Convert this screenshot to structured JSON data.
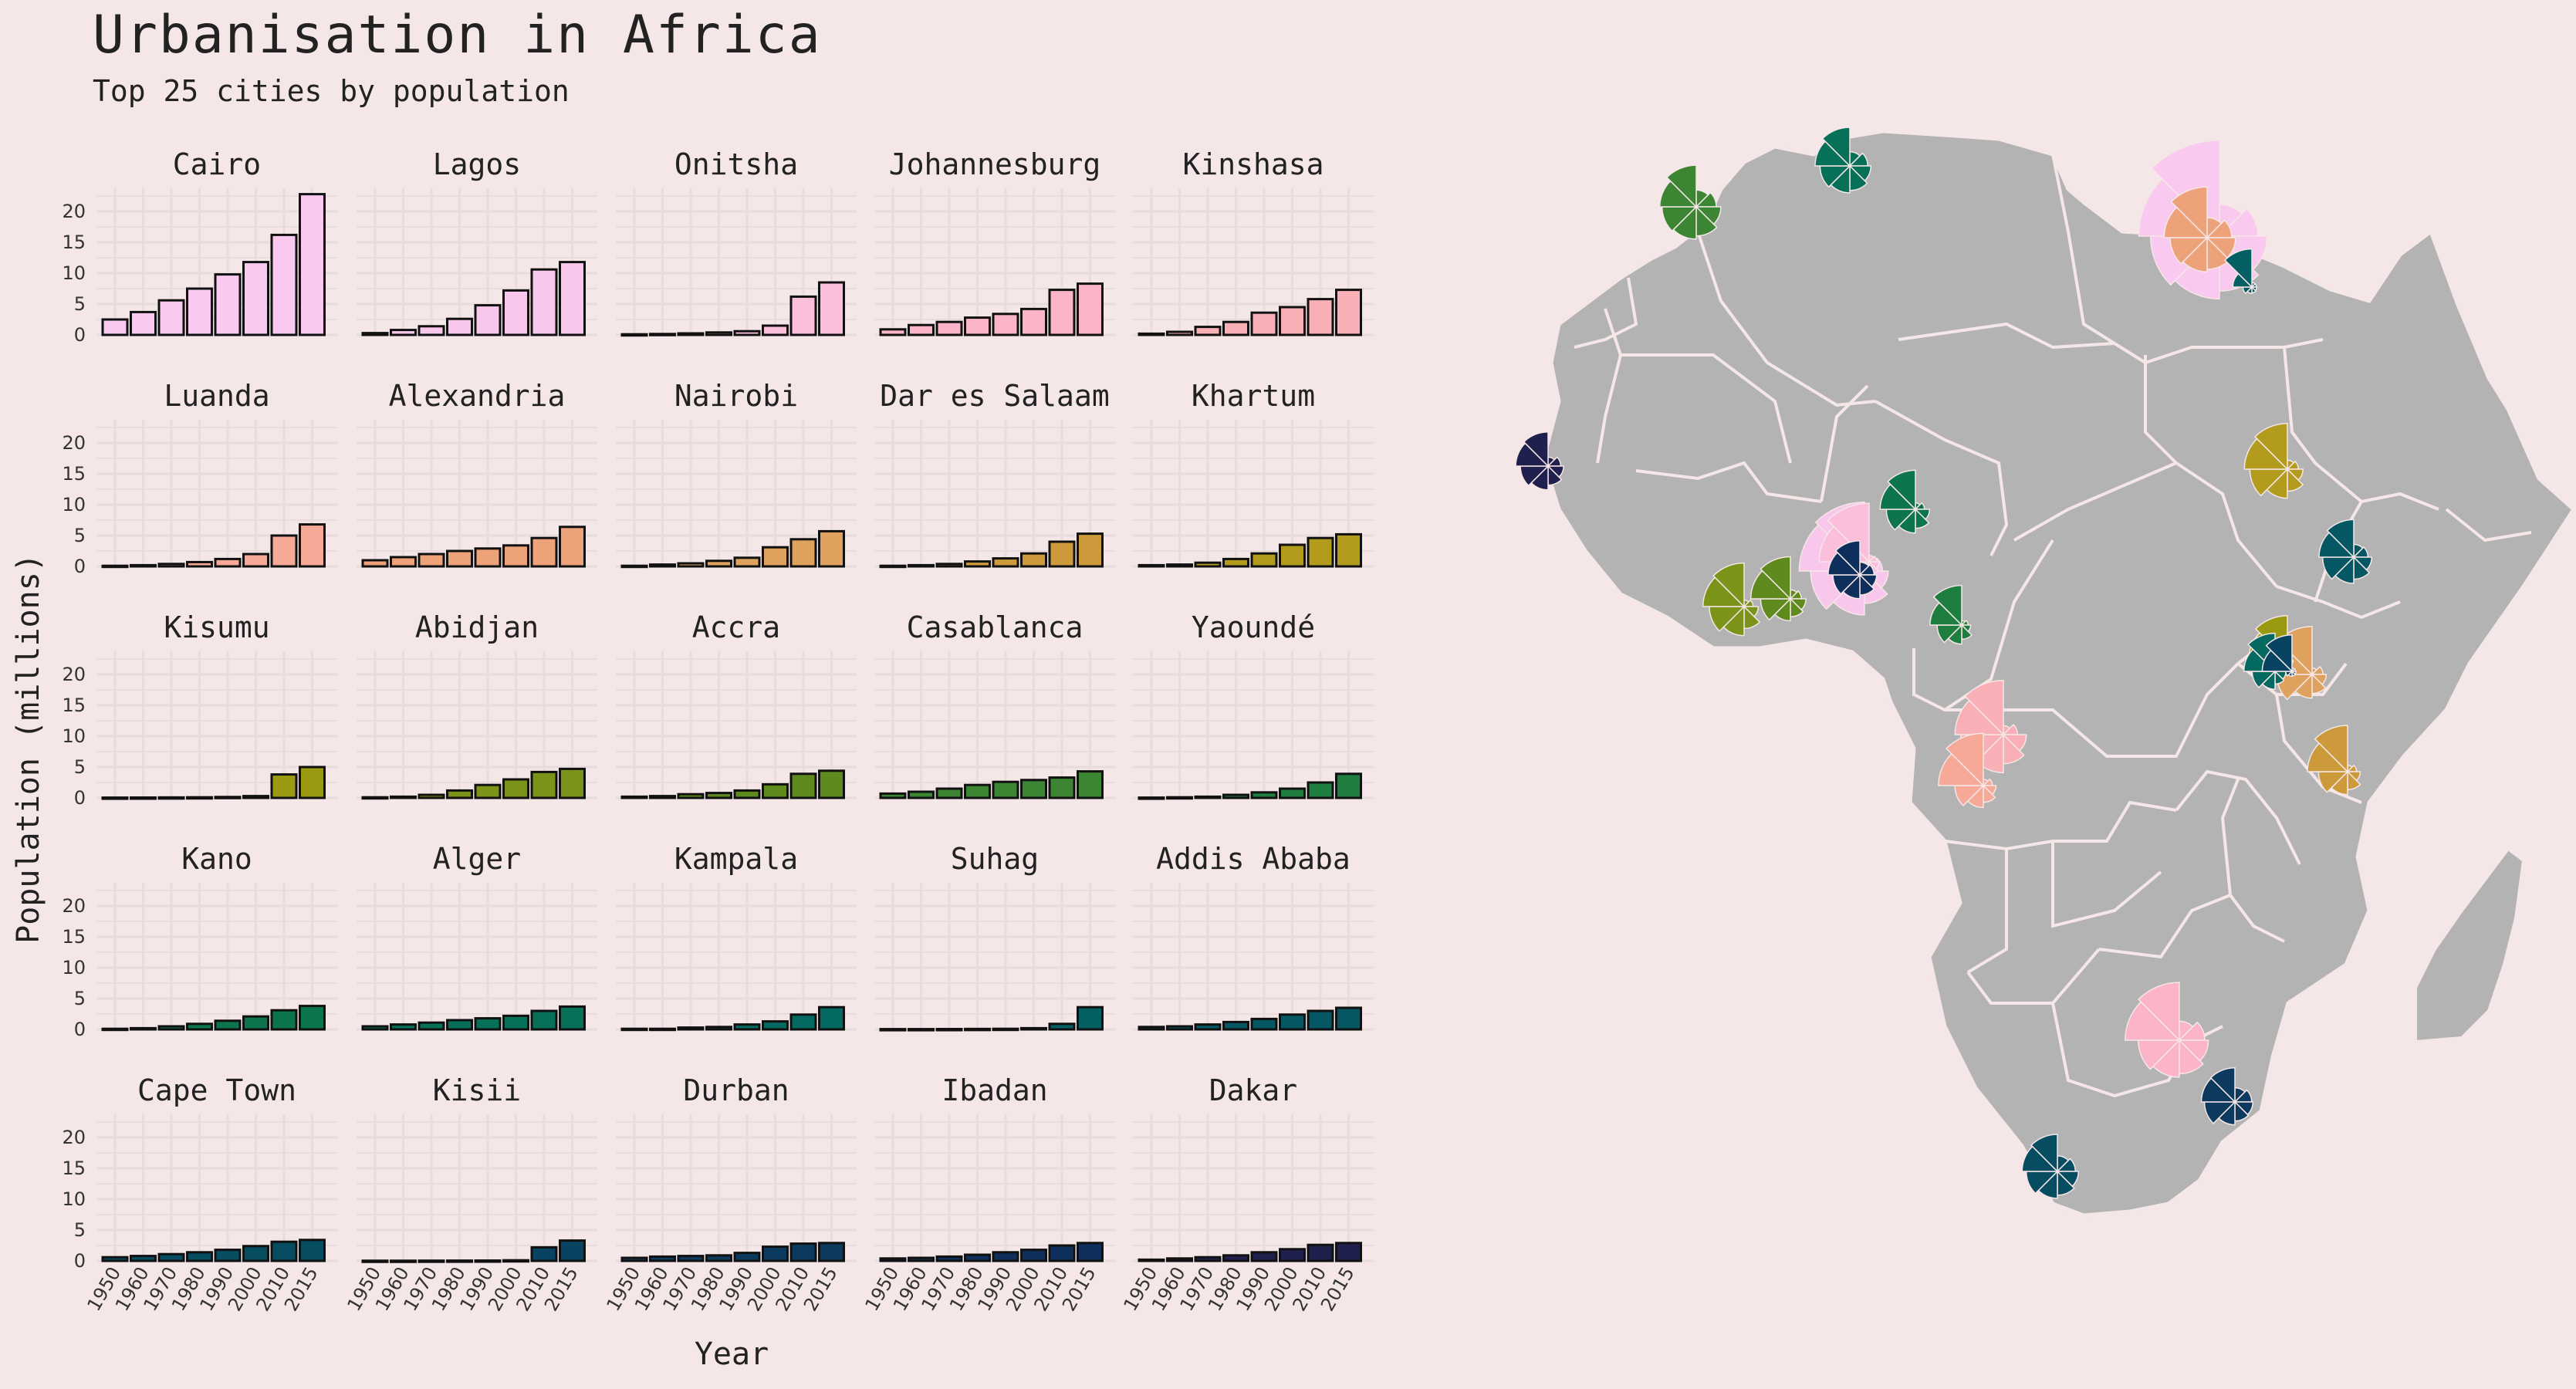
{
  "title": "Urbanisation in Africa",
  "subtitle": "Top 25 cities by population",
  "colors": {
    "background": "#f5e6e7",
    "grid": "#e8dcdc",
    "land": "#b3b3b3",
    "border": "#f5e6e7",
    "bar_outline": "#111111"
  },
  "chart_data": [
    {
      "type": "bar",
      "layout": "facet grid 5x5",
      "title": "Urbanisation in Africa",
      "subtitle": "Top 25 cities by population",
      "xlabel": "Year",
      "ylabel": "Population (millions)",
      "ylim": [
        0,
        23
      ],
      "yticks": [
        0,
        5,
        10,
        15,
        20
      ],
      "categories": [
        "1950",
        "1960",
        "1970",
        "1980",
        "1990",
        "2000",
        "2010",
        "2015"
      ],
      "grid": true,
      "series": [
        {
          "name": "Cairo",
          "color": "#f9c9ef",
          "values": [
            2.5,
            3.7,
            5.6,
            7.5,
            9.8,
            11.8,
            16.2,
            22.8
          ]
        },
        {
          "name": "Lagos",
          "color": "#fac7ec",
          "values": [
            0.3,
            0.8,
            1.4,
            2.6,
            4.8,
            7.2,
            10.6,
            11.8
          ]
        },
        {
          "name": "Onitsha",
          "color": "#fbbfdc",
          "values": [
            0.1,
            0.15,
            0.25,
            0.4,
            0.6,
            1.5,
            6.2,
            8.5
          ]
        },
        {
          "name": "Johannesburg",
          "color": "#fbb4c8",
          "values": [
            0.9,
            1.6,
            2.1,
            2.8,
            3.4,
            4.2,
            7.3,
            8.3
          ]
        },
        {
          "name": "Kinshasa",
          "color": "#f8afb6",
          "values": [
            0.2,
            0.5,
            1.3,
            2.1,
            3.6,
            4.5,
            5.8,
            7.3
          ]
        },
        {
          "name": "Luanda",
          "color": "#f6a996",
          "values": [
            0.1,
            0.2,
            0.4,
            0.7,
            1.2,
            2.0,
            5.0,
            6.8
          ]
        },
        {
          "name": "Alexandria",
          "color": "#eea27a",
          "values": [
            1.0,
            1.5,
            2.0,
            2.5,
            2.9,
            3.4,
            4.6,
            6.4
          ]
        },
        {
          "name": "Nairobi",
          "color": "#dfa15e",
          "values": [
            0.1,
            0.3,
            0.5,
            0.9,
            1.4,
            3.1,
            4.4,
            5.7
          ]
        },
        {
          "name": "Dar es Salaam",
          "color": "#cc9a3b",
          "values": [
            0.1,
            0.2,
            0.4,
            0.8,
            1.3,
            2.1,
            4.0,
            5.3
          ]
        },
        {
          "name": "Khartum",
          "color": "#b29b1d",
          "values": [
            0.2,
            0.3,
            0.6,
            1.2,
            2.1,
            3.5,
            4.6,
            5.2
          ]
        },
        {
          "name": "Kisumu",
          "color": "#9a9a12",
          "values": [
            0.05,
            0.06,
            0.08,
            0.1,
            0.15,
            0.3,
            3.8,
            5.0
          ]
        },
        {
          "name": "Abidjan",
          "color": "#7a9318",
          "values": [
            0.1,
            0.2,
            0.5,
            1.2,
            2.1,
            3.0,
            4.2,
            4.7
          ]
        },
        {
          "name": "Accra",
          "color": "#5f8a1e",
          "values": [
            0.2,
            0.3,
            0.6,
            0.8,
            1.2,
            2.2,
            3.9,
            4.4
          ]
        },
        {
          "name": "Casablanca",
          "color": "#3b8533",
          "values": [
            0.7,
            1.0,
            1.5,
            2.1,
            2.6,
            2.9,
            3.3,
            4.3
          ]
        },
        {
          "name": "Yaoundé",
          "color": "#1e7e3f",
          "values": [
            0.05,
            0.1,
            0.2,
            0.5,
            0.9,
            1.5,
            2.5,
            3.9
          ]
        },
        {
          "name": "Kano",
          "color": "#0d754d",
          "values": [
            0.1,
            0.2,
            0.5,
            0.9,
            1.4,
            2.1,
            3.1,
            3.8
          ]
        },
        {
          "name": "Alger",
          "color": "#067058",
          "values": [
            0.5,
            0.8,
            1.1,
            1.5,
            1.8,
            2.2,
            3.0,
            3.7
          ]
        },
        {
          "name": "Kampala",
          "color": "#046960",
          "values": [
            0.1,
            0.1,
            0.3,
            0.4,
            0.8,
            1.3,
            2.4,
            3.6
          ]
        },
        {
          "name": "Suhag",
          "color": "#045f62",
          "values": [
            0.05,
            0.05,
            0.06,
            0.08,
            0.1,
            0.2,
            0.9,
            3.6
          ]
        },
        {
          "name": "Addis Ababa",
          "color": "#055763",
          "values": [
            0.4,
            0.5,
            0.8,
            1.2,
            1.7,
            2.4,
            3.0,
            3.5
          ]
        },
        {
          "name": "Cape Town",
          "color": "#064d62",
          "values": [
            0.6,
            0.8,
            1.1,
            1.4,
            1.8,
            2.4,
            3.1,
            3.4
          ]
        },
        {
          "name": "Kisii",
          "color": "#084461",
          "values": [
            0.03,
            0.03,
            0.04,
            0.05,
            0.06,
            0.1,
            2.2,
            3.3
          ]
        },
        {
          "name": "Durban",
          "color": "#0b3a5e",
          "values": [
            0.5,
            0.7,
            0.8,
            0.9,
            1.3,
            2.3,
            2.8,
            2.9
          ]
        },
        {
          "name": "Ibadan",
          "color": "#0e2f5b",
          "values": [
            0.4,
            0.5,
            0.7,
            1.0,
            1.4,
            1.8,
            2.5,
            2.9
          ]
        },
        {
          "name": "Dakar",
          "color": "#20204f",
          "values": [
            0.2,
            0.4,
            0.6,
            0.9,
            1.4,
            1.9,
            2.6,
            2.9
          ]
        }
      ]
    }
  ]
}
